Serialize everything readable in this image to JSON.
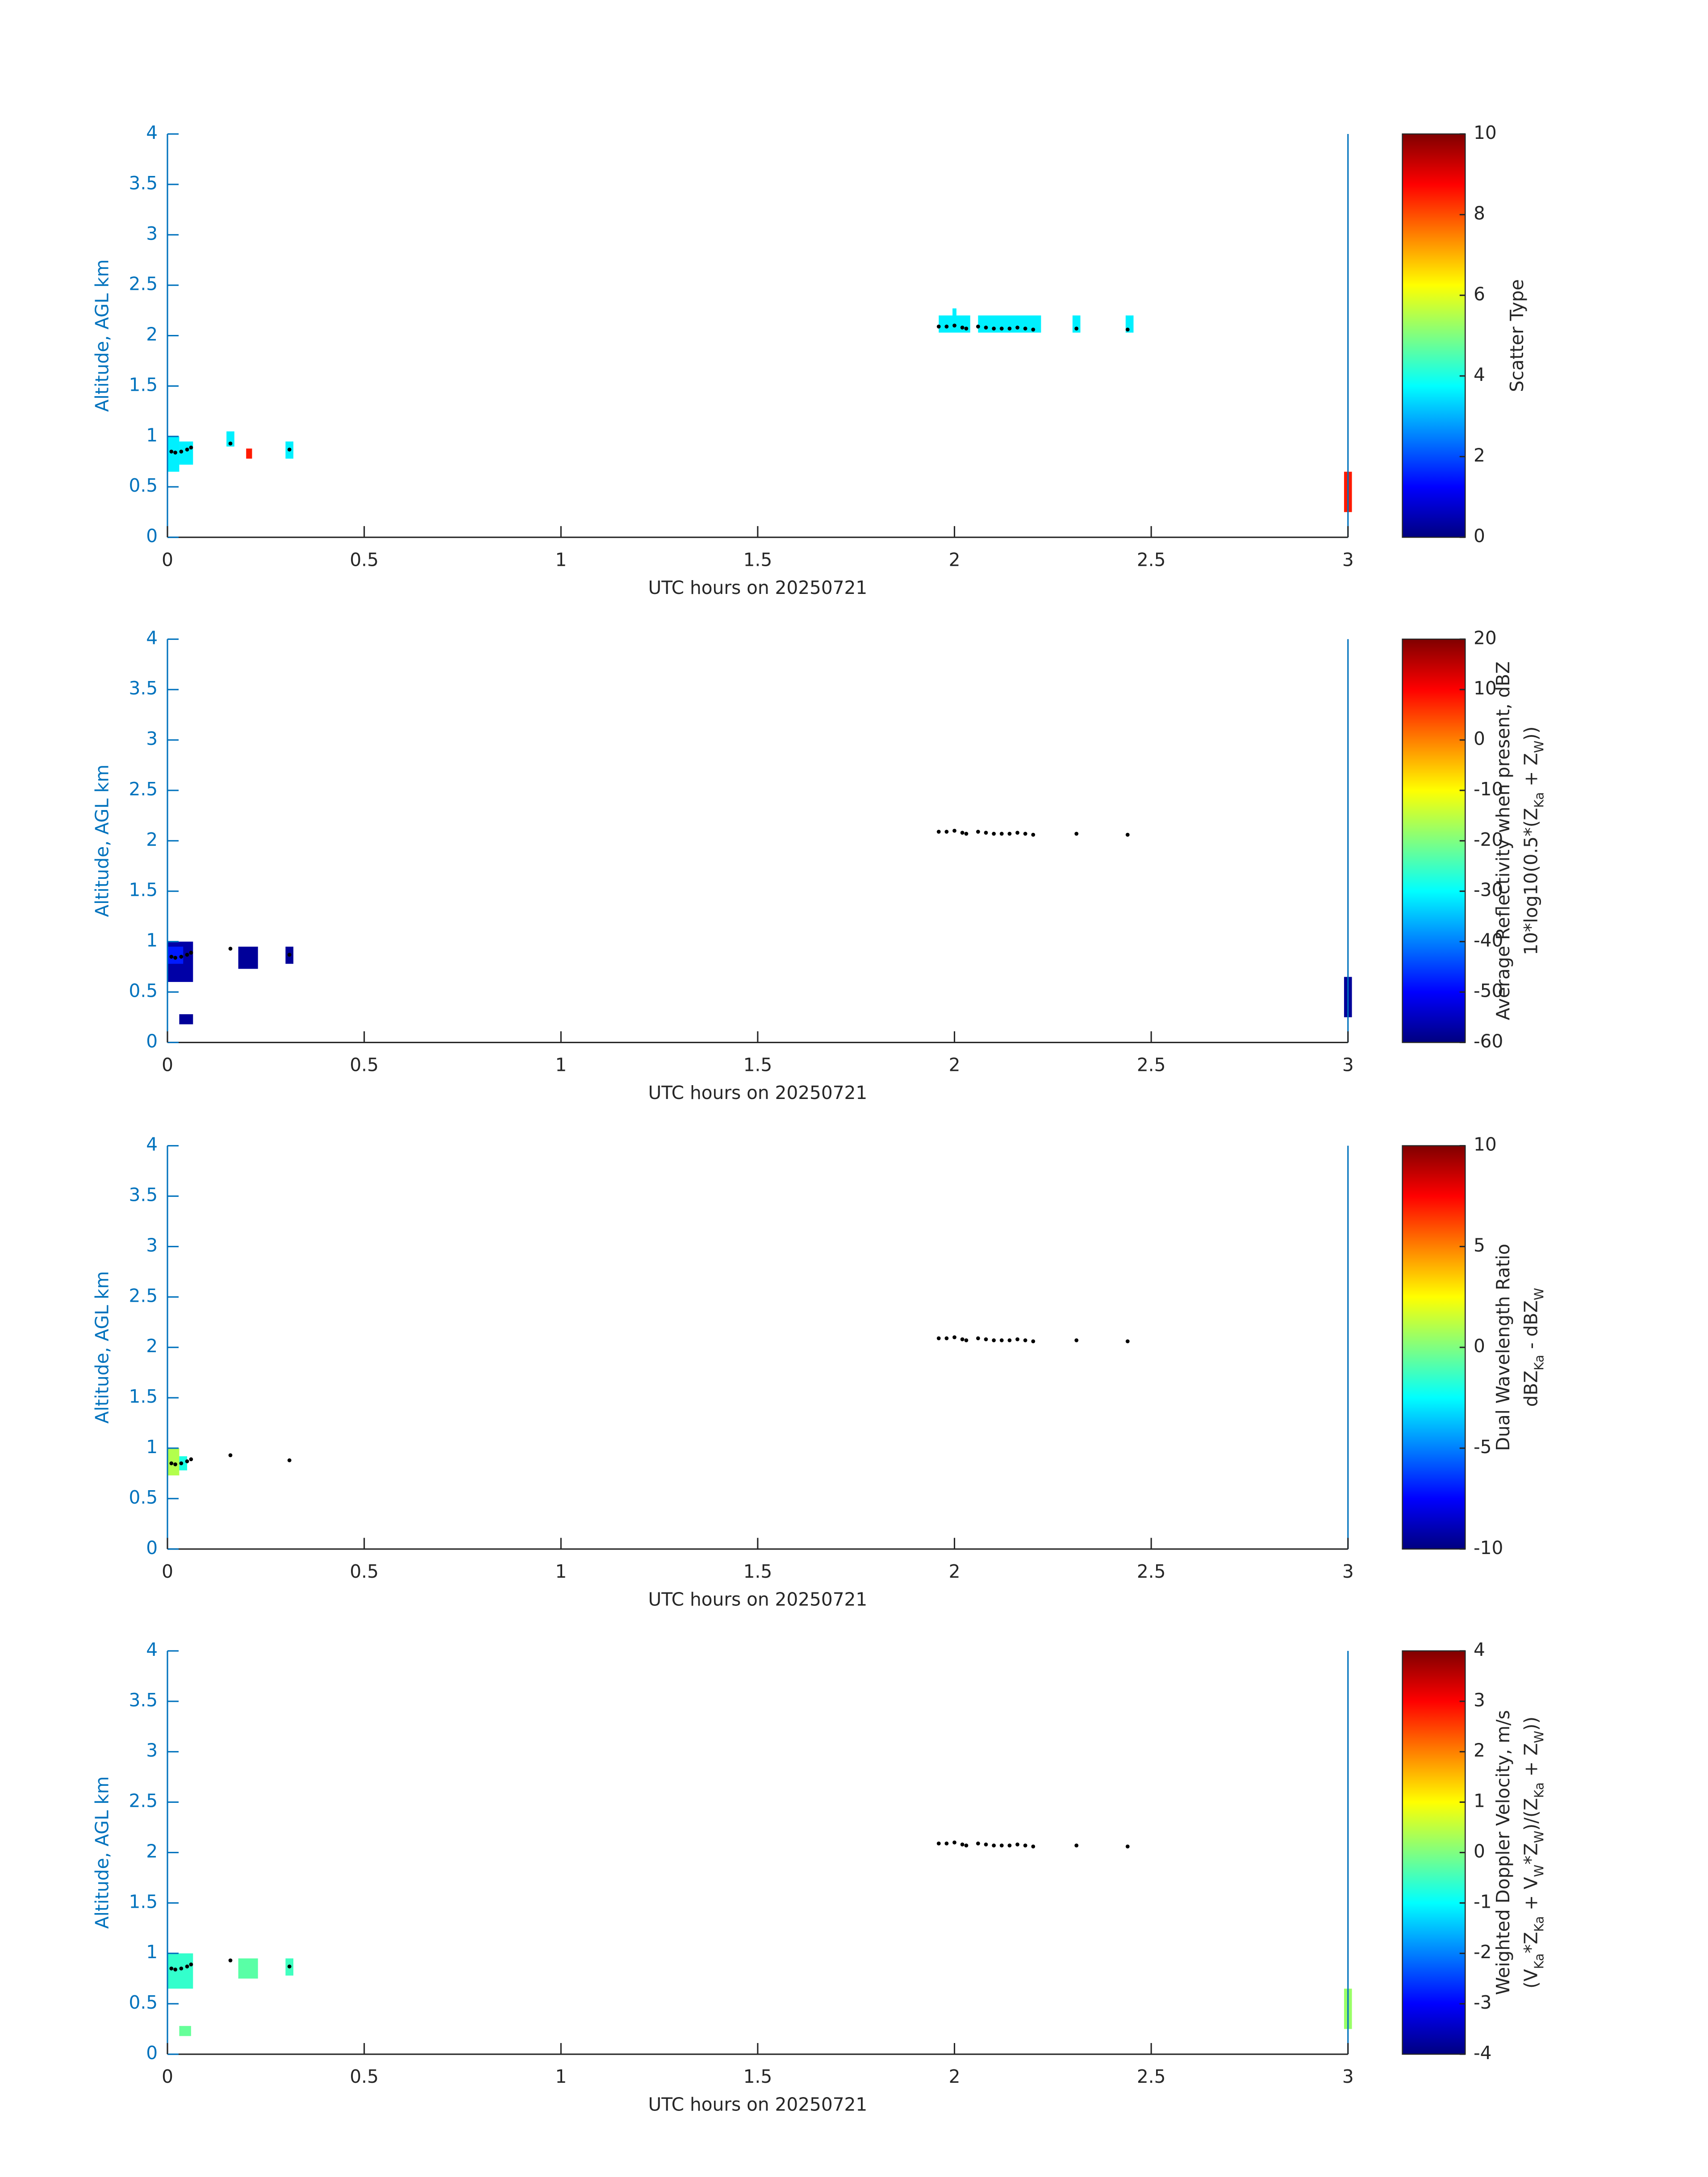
{
  "chart_data": [
    {
      "type": "heatmap",
      "xlabel": "UTC hours on 20250721",
      "ylabel": "Altitude, AGL km",
      "xlim": [
        0,
        3
      ],
      "xticks": [
        0,
        0.5,
        1,
        1.5,
        2,
        2.5,
        3
      ],
      "ylim": [
        0,
        4
      ],
      "yticks": [
        0,
        0.5,
        1,
        1.5,
        2,
        2.5,
        3,
        3.5,
        4
      ],
      "clim": [
        0,
        10
      ],
      "cticks": [
        0,
        2,
        4,
        6,
        8,
        10
      ],
      "clabel": [
        [
          {
            "text": "Scatter Type"
          }
        ]
      ],
      "cells": {
        "x0": [
          0,
          0.03,
          0.15,
          0.2,
          0.3,
          1.96,
          1.995,
          2.06,
          2.3,
          2.435,
          2.99
        ],
        "x1": [
          0.03,
          0.065,
          0.17,
          0.215,
          0.32,
          2.04,
          2.005,
          2.22,
          2.32,
          2.455,
          3.01
        ],
        "y0": [
          0.65,
          0.72,
          0.9,
          0.78,
          0.78,
          2.03,
          2.1,
          2.03,
          2.03,
          2.03,
          0.25
        ],
        "y1": [
          1.0,
          0.95,
          1.05,
          0.88,
          0.95,
          2.2,
          2.27,
          2.2,
          2.2,
          2.2,
          0.65
        ],
        "values": [
          3.6,
          3.6,
          3.6,
          8.5,
          3.6,
          3.6,
          3.6,
          3.6,
          3.6,
          3.6,
          8.5
        ]
      },
      "points": {
        "x": [
          0.01,
          0.02,
          0.035,
          0.05,
          0.06,
          0.16,
          0.31,
          1.96,
          1.98,
          2.0,
          2.02,
          2.03,
          2.06,
          2.08,
          2.1,
          2.12,
          2.14,
          2.16,
          2.18,
          2.2,
          2.31,
          2.44
        ],
        "y": [
          0.85,
          0.84,
          0.85,
          0.87,
          0.89,
          0.93,
          0.87,
          2.09,
          2.09,
          2.1,
          2.08,
          2.07,
          2.09,
          2.08,
          2.07,
          2.07,
          2.07,
          2.08,
          2.07,
          2.06,
          2.07,
          2.06
        ]
      }
    },
    {
      "type": "heatmap",
      "xlabel": "UTC hours on 20250721",
      "ylabel": "Altitude, AGL km",
      "xlim": [
        0,
        3
      ],
      "xticks": [
        0,
        0.5,
        1,
        1.5,
        2,
        2.5,
        3
      ],
      "ylim": [
        0,
        4
      ],
      "yticks": [
        0,
        0.5,
        1,
        1.5,
        2,
        2.5,
        3,
        3.5,
        4
      ],
      "clim": [
        -60,
        20
      ],
      "cticks": [
        -60,
        -50,
        -40,
        -30,
        -20,
        -10,
        0,
        10,
        20
      ],
      "clabel": [
        [
          {
            "text": "Average Reflectivity when present, dBZ"
          }
        ],
        [
          {
            "text": "10*log10(0.5*(Z"
          },
          {
            "text": "Ka",
            "sub": true
          },
          {
            "text": " + Z"
          },
          {
            "text": "W",
            "sub": true
          },
          {
            "text": "))"
          }
        ]
      ],
      "cells": {
        "x0": [
          0,
          0,
          0.03,
          0.18,
          0.3,
          2.99
        ],
        "x1": [
          0.065,
          0.04,
          0.065,
          0.23,
          0.32,
          3.01
        ],
        "y0": [
          0.6,
          0.78,
          0.18,
          0.73,
          0.78,
          0.25
        ],
        "y1": [
          1.0,
          0.95,
          0.28,
          0.95,
          0.95,
          0.65
        ],
        "values": [
          -57,
          -48,
          -58,
          -58,
          -58,
          -58
        ]
      },
      "points": {
        "x": [
          0.01,
          0.02,
          0.035,
          0.05,
          0.06,
          0.16,
          0.31,
          1.96,
          1.98,
          2.0,
          2.02,
          2.03,
          2.06,
          2.08,
          2.1,
          2.12,
          2.14,
          2.16,
          2.18,
          2.2,
          2.31,
          2.44
        ],
        "y": [
          0.85,
          0.84,
          0.85,
          0.87,
          0.89,
          0.93,
          0.87,
          2.09,
          2.09,
          2.1,
          2.08,
          2.07,
          2.09,
          2.08,
          2.07,
          2.07,
          2.07,
          2.08,
          2.07,
          2.06,
          2.07,
          2.06
        ]
      }
    },
    {
      "type": "heatmap",
      "xlabel": "UTC hours on 20250721",
      "ylabel": "Altitude, AGL km",
      "xlim": [
        0,
        3
      ],
      "xticks": [
        0,
        0.5,
        1,
        1.5,
        2,
        2.5,
        3
      ],
      "ylim": [
        0,
        4
      ],
      "yticks": [
        0,
        0.5,
        1,
        1.5,
        2,
        2.5,
        3,
        3.5,
        4
      ],
      "clim": [
        -10,
        10
      ],
      "cticks": [
        -10,
        -5,
        0,
        5,
        10
      ],
      "clabel": [
        [
          {
            "text": "Dual Wavelength Ratio"
          }
        ],
        [
          {
            "text": "dBZ"
          },
          {
            "text": "Ka",
            "sub": true
          },
          {
            "text": " - dBZ"
          },
          {
            "text": "W",
            "sub": true
          }
        ]
      ],
      "cells": {
        "x0": [
          0,
          0.03
        ],
        "x1": [
          0.03,
          0.05
        ],
        "y0": [
          0.73,
          0.78
        ],
        "y1": [
          1.0,
          0.92
        ],
        "values": [
          1,
          -2
        ]
      },
      "points": {
        "x": [
          0.01,
          0.02,
          0.035,
          0.05,
          0.06,
          0.16,
          0.31,
          1.96,
          1.98,
          2.0,
          2.02,
          2.03,
          2.06,
          2.08,
          2.1,
          2.12,
          2.14,
          2.16,
          2.18,
          2.2,
          2.31,
          2.44
        ],
        "y": [
          0.85,
          0.84,
          0.85,
          0.87,
          0.89,
          0.93,
          0.88,
          2.09,
          2.09,
          2.1,
          2.08,
          2.07,
          2.09,
          2.08,
          2.07,
          2.07,
          2.07,
          2.08,
          2.07,
          2.06,
          2.07,
          2.06
        ]
      }
    },
    {
      "type": "heatmap",
      "xlabel": "UTC hours on 20250721",
      "ylabel": "Altitude, AGL km",
      "xlim": [
        0,
        3
      ],
      "xticks": [
        0,
        0.5,
        1,
        1.5,
        2,
        2.5,
        3
      ],
      "ylim": [
        0,
        4
      ],
      "yticks": [
        0,
        0.5,
        1,
        1.5,
        2,
        2.5,
        3,
        3.5,
        4
      ],
      "clim": [
        -4,
        4
      ],
      "cticks": [
        -4,
        -3,
        -2,
        -1,
        0,
        1,
        2,
        3,
        4
      ],
      "clabel": [
        [
          {
            "text": "Weighted Doppler Velocity, m/s"
          }
        ],
        [
          {
            "text": "(V"
          },
          {
            "text": "Ka",
            "sub": true
          },
          {
            "text": "*Z"
          },
          {
            "text": "Ka",
            "sub": true
          },
          {
            "text": " + V"
          },
          {
            "text": "W",
            "sub": true
          },
          {
            "text": "*Z"
          },
          {
            "text": "W",
            "sub": true
          },
          {
            "text": ")/(Z"
          },
          {
            "text": "Ka",
            "sub": true
          },
          {
            "text": " + Z"
          },
          {
            "text": "W",
            "sub": true
          },
          {
            "text": "))"
          }
        ]
      ],
      "cells": {
        "x0": [
          0,
          0.18,
          0.3,
          0.03,
          2.99
        ],
        "x1": [
          0.065,
          0.23,
          0.32,
          0.06,
          3.01
        ],
        "y0": [
          0.65,
          0.75,
          0.78,
          0.18,
          0.25
        ],
        "y1": [
          1.0,
          0.95,
          0.95,
          0.28,
          0.65
        ],
        "values": [
          -0.6,
          -0.3,
          -0.5,
          -0.2,
          0.2
        ]
      },
      "points": {
        "x": [
          0.01,
          0.02,
          0.035,
          0.05,
          0.06,
          0.16,
          0.31,
          1.96,
          1.98,
          2.0,
          2.02,
          2.03,
          2.06,
          2.08,
          2.1,
          2.12,
          2.14,
          2.16,
          2.18,
          2.2,
          2.31,
          2.44
        ],
        "y": [
          0.85,
          0.84,
          0.85,
          0.87,
          0.89,
          0.93,
          0.87,
          2.09,
          2.09,
          2.1,
          2.08,
          2.07,
          2.09,
          2.08,
          2.07,
          2.07,
          2.07,
          2.08,
          2.07,
          2.06,
          2.07,
          2.06
        ]
      }
    }
  ]
}
